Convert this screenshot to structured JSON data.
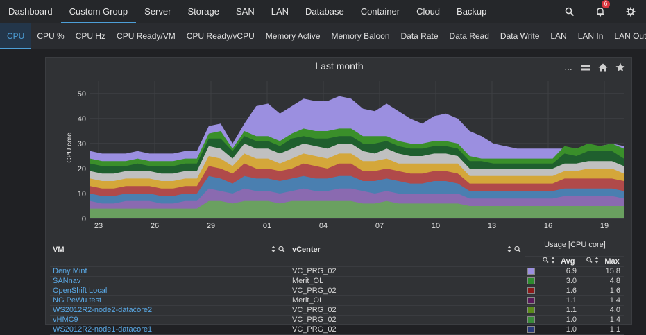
{
  "topnav": {
    "items": [
      "Dashboard",
      "Custom Group",
      "Server",
      "Storage",
      "SAN",
      "LAN",
      "Database",
      "Container",
      "Cloud",
      "Backup"
    ],
    "active": "Custom Group",
    "notification_count": "6"
  },
  "subnav": {
    "items": [
      "CPU",
      "CPU %",
      "CPU Hz",
      "CPU Ready/VM",
      "CPU Ready/vCPU",
      "Memory Active",
      "Memory Baloon",
      "Data Rate",
      "Data Read",
      "Data Write",
      "LAN",
      "LAN In",
      "LAN Out"
    ],
    "active": "CPU"
  },
  "chart_data": {
    "type": "area",
    "title": "Last month",
    "ylabel": "CPU core",
    "ylim": [
      0,
      55
    ],
    "yticks": [
      "0",
      "10",
      "20",
      "30",
      "40",
      "50"
    ],
    "xticks": [
      "23",
      "26",
      "29",
      "01",
      "04",
      "07",
      "10",
      "13",
      "16",
      "19"
    ],
    "series": [
      {
        "color": "#9b8fe0",
        "values": [
          27,
          26,
          26,
          26,
          27,
          26,
          26,
          26,
          27,
          27,
          37,
          38,
          30,
          38,
          45,
          46,
          42,
          45,
          48,
          47,
          47,
          49,
          48,
          44,
          43,
          46,
          43,
          40,
          38,
          41,
          42,
          40,
          35,
          33,
          30,
          29,
          28,
          28,
          28,
          28,
          28,
          28,
          29,
          29,
          30,
          29
        ]
      },
      {
        "color": "#3a8f2a",
        "values": [
          24,
          23,
          23,
          23,
          24,
          23,
          23,
          23,
          24,
          24,
          34,
          35,
          28,
          35,
          33,
          33,
          31,
          34,
          36,
          35,
          35,
          36,
          36,
          33,
          33,
          33,
          31,
          30,
          30,
          31,
          31,
          30,
          25,
          24,
          24,
          24,
          24,
          24,
          24,
          24,
          29,
          28,
          30,
          29,
          30,
          28
        ]
      },
      {
        "color": "#1f5f2e",
        "values": [
          22,
          21,
          21,
          21,
          22,
          21,
          21,
          21,
          22,
          22,
          32,
          32,
          27,
          33,
          31,
          31,
          29,
          32,
          33,
          32,
          32,
          33,
          33,
          30,
          30,
          31,
          29,
          28,
          28,
          29,
          29,
          28,
          23,
          23,
          22,
          22,
          22,
          22,
          22,
          22,
          26,
          25,
          27,
          27,
          27,
          24
        ]
      },
      {
        "color": "#c0c0c0",
        "values": [
          19,
          18,
          18,
          19,
          19,
          19,
          18,
          18,
          19,
          19,
          29,
          28,
          24,
          30,
          28,
          28,
          26,
          28,
          30,
          29,
          28,
          30,
          30,
          27,
          26,
          28,
          26,
          25,
          25,
          26,
          26,
          25,
          20,
          20,
          20,
          20,
          20,
          20,
          20,
          20,
          22,
          22,
          23,
          23,
          23,
          21
        ]
      },
      {
        "color": "#d4a73a",
        "values": [
          16,
          15,
          15,
          16,
          16,
          16,
          15,
          15,
          16,
          16,
          25,
          24,
          21,
          26,
          24,
          24,
          22,
          24,
          26,
          25,
          24,
          26,
          26,
          23,
          23,
          24,
          22,
          22,
          22,
          22,
          22,
          22,
          17,
          17,
          17,
          17,
          17,
          17,
          17,
          17,
          19,
          19,
          20,
          20,
          20,
          18
        ]
      },
      {
        "color": "#b04a4a",
        "values": [
          13,
          12,
          12,
          13,
          13,
          13,
          12,
          12,
          13,
          13,
          21,
          20,
          18,
          22,
          20,
          20,
          19,
          20,
          22,
          21,
          20,
          22,
          22,
          19,
          19,
          20,
          19,
          18,
          18,
          19,
          19,
          18,
          14,
          14,
          14,
          14,
          14,
          14,
          14,
          14,
          16,
          16,
          16,
          16,
          16,
          15
        ]
      },
      {
        "color": "#4a7fb0",
        "values": [
          10,
          9,
          9,
          10,
          10,
          10,
          9,
          9,
          10,
          10,
          17,
          16,
          14,
          17,
          16,
          16,
          15,
          16,
          17,
          16,
          16,
          17,
          17,
          15,
          15,
          16,
          15,
          14,
          14,
          15,
          15,
          14,
          11,
          11,
          11,
          11,
          11,
          11,
          11,
          11,
          12,
          12,
          12,
          12,
          12,
          11
        ]
      },
      {
        "color": "#8a6ab0",
        "values": [
          7,
          6,
          6,
          7,
          7,
          7,
          6,
          6,
          7,
          7,
          12,
          11,
          10,
          12,
          11,
          11,
          10,
          11,
          12,
          11,
          11,
          12,
          12,
          11,
          10,
          11,
          10,
          10,
          10,
          10,
          10,
          10,
          8,
          8,
          8,
          8,
          8,
          8,
          8,
          8,
          9,
          9,
          9,
          9,
          9,
          8
        ]
      },
      {
        "color": "#6aa060",
        "values": [
          4,
          4,
          4,
          4,
          4,
          4,
          4,
          4,
          4,
          4,
          7,
          7,
          6,
          7,
          7,
          7,
          6,
          7,
          7,
          7,
          7,
          7,
          7,
          6,
          6,
          7,
          6,
          6,
          6,
          6,
          6,
          6,
          5,
          5,
          5,
          5,
          5,
          5,
          5,
          5,
          5,
          5,
          5,
          5,
          5,
          5
        ]
      }
    ]
  },
  "table": {
    "headers": {
      "vm": "VM",
      "vcenter": "vCenter",
      "usage": "Usage [CPU core]",
      "avg": "Avg",
      "max": "Max"
    },
    "rows": [
      {
        "vm": "Deny Mint",
        "vcenter": "VC_PRG_02",
        "color": "#9b8fe0",
        "avg": "6.9",
        "max": "15.8"
      },
      {
        "vm": "SANnav",
        "vcenter": "Merit_OL",
        "color": "#2e8b2e",
        "avg": "3.0",
        "max": "4.8"
      },
      {
        "vm": "OpenShift Local",
        "vcenter": "VC_PRG_02",
        "color": "#8b1a1a",
        "avg": "1.6",
        "max": "1.6"
      },
      {
        "vm": "NG PeWu test",
        "vcenter": "Merit_OL",
        "color": "#5a1a5a",
        "avg": "1.1",
        "max": "1.4"
      },
      {
        "vm": "WS2012R2-node2-dátačóre2",
        "vcenter": "VC_PRG_02",
        "color": "#5a8a1a",
        "avg": "1.1",
        "max": "4.0"
      },
      {
        "vm": "vHMC9",
        "vcenter": "VC_PRG_02",
        "color": "#3a8a3a",
        "avg": "1.0",
        "max": "1.4"
      },
      {
        "vm": "WS2012R2-node1-datacore1",
        "vcenter": "VC_PRG_02",
        "color": "#2a3a7a",
        "avg": "1.0",
        "max": "1.1"
      }
    ]
  }
}
